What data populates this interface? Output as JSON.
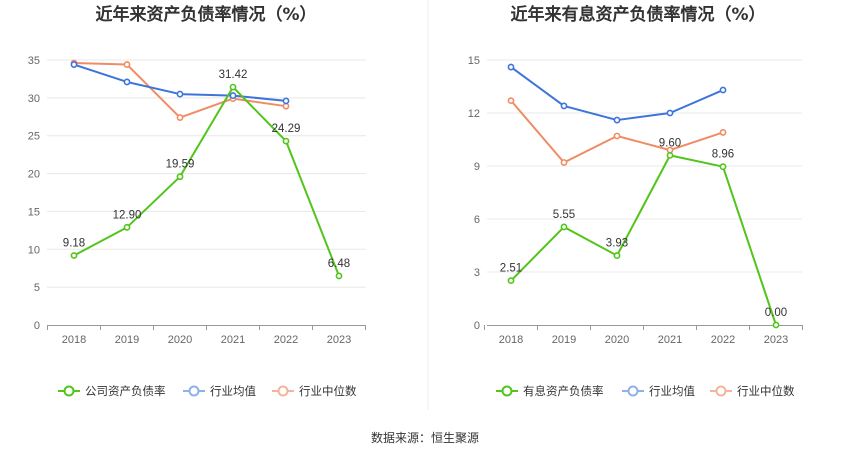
{
  "source_text": "数据来源：恒生聚源",
  "colors": {
    "company": "#52c41a",
    "avg": "#3d74dc",
    "median": "#f08c64",
    "avg_legend": "#8fb0ea",
    "median_legend": "#f4b49c",
    "grid": "#e8e8e8",
    "axis": "#999999"
  },
  "chart_data": [
    {
      "type": "line",
      "title": "近年来资产负债率情况（%）",
      "categories": [
        "2018",
        "2019",
        "2020",
        "2021",
        "2022",
        "2023"
      ],
      "ylim": [
        0,
        35
      ],
      "yticks": [
        "0",
        "5",
        "10",
        "15",
        "20",
        "25",
        "30",
        "35"
      ],
      "series": [
        {
          "name": "公司资产负债率",
          "key": "company",
          "values": [
            9.18,
            12.9,
            19.59,
            31.42,
            24.29,
            6.48
          ],
          "labels": [
            "9.18",
            "12.90",
            "19.59",
            "31.42",
            "24.29",
            "6.48"
          ]
        },
        {
          "name": "行业均值",
          "key": "avg",
          "values": [
            34.4,
            32.1,
            30.5,
            30.3,
            29.6,
            null
          ]
        },
        {
          "name": "行业中位数",
          "key": "median",
          "values": [
            34.6,
            34.4,
            27.4,
            29.9,
            28.9,
            null
          ]
        }
      ]
    },
    {
      "type": "line",
      "title": "近年来有息资产负债率情况（%）",
      "categories": [
        "2018",
        "2019",
        "2020",
        "2021",
        "2022",
        "2023"
      ],
      "ylim": [
        0,
        15
      ],
      "yticks": [
        "0",
        "3",
        "6",
        "9",
        "12",
        "15"
      ],
      "series": [
        {
          "name": "有息资产负债率",
          "key": "company",
          "values": [
            2.51,
            5.55,
            3.93,
            9.6,
            8.96,
            0.0
          ],
          "labels": [
            "2.51",
            "5.55",
            "3.93",
            "9.60",
            "8.96",
            "0.00"
          ]
        },
        {
          "name": "行业均值",
          "key": "avg",
          "values": [
            14.6,
            12.4,
            11.6,
            12.0,
            13.3,
            null
          ]
        },
        {
          "name": "行业中位数",
          "key": "median",
          "values": [
            12.7,
            9.2,
            10.7,
            9.9,
            10.9,
            null
          ]
        }
      ]
    }
  ]
}
